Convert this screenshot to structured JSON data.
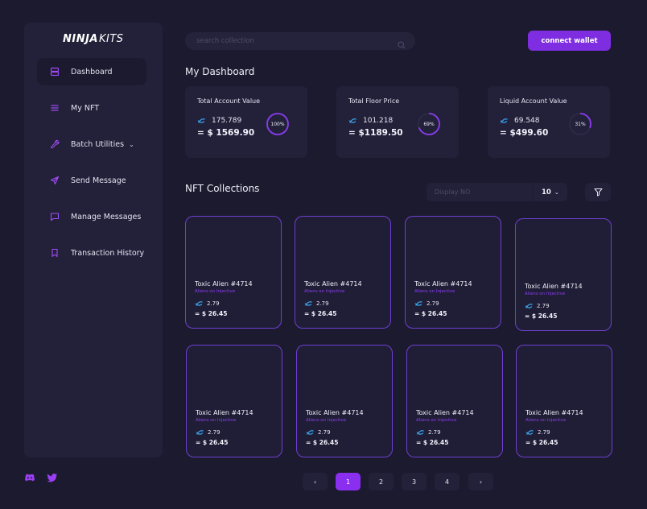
{
  "brand": {
    "name_part1": "NINJA",
    "name_part2": "KITS"
  },
  "sidebar": {
    "items": [
      {
        "label": "Dashboard",
        "icon": "database-icon",
        "active": true
      },
      {
        "label": "My NFT",
        "icon": "list-icon"
      },
      {
        "label": "Batch Utilities",
        "icon": "wrench-icon",
        "chevron": "⌄"
      },
      {
        "label": "Send Message",
        "icon": "send-icon"
      },
      {
        "label": "Manage Messages",
        "icon": "message-icon"
      },
      {
        "label": "Transaction History",
        "icon": "bookmark-icon"
      }
    ]
  },
  "social": [
    {
      "icon": "discord-icon"
    },
    {
      "icon": "twitter-icon"
    }
  ],
  "search": {
    "placeholder": "search collection"
  },
  "header": {
    "connect_label": "connect wallet"
  },
  "dashboard": {
    "title": "My Dashboard",
    "stats": [
      {
        "label": "Total Account Value",
        "tokens": "175.789",
        "usd": "= $ 1569.90",
        "percent_label": "100%",
        "percent": 100
      },
      {
        "label": "Total Floor Price",
        "tokens": "101.218",
        "usd": "= $1189.50",
        "percent_label": "69%",
        "percent": 69
      },
      {
        "label": "Liquid Account Value",
        "tokens": "69.548",
        "usd": "= $499.60",
        "percent_label": "31%",
        "percent": 31
      }
    ]
  },
  "collections": {
    "title": "NFT Collections",
    "display_placeholder": "Display NO",
    "display_count": "10",
    "display_chevron": "⌄",
    "items": [
      {
        "name": "Toxic Alien #4714",
        "sub": "Aliens on Injective",
        "price": "2.79",
        "usd": "= $ 26.45"
      },
      {
        "name": "Toxic Alien #4714",
        "sub": "Aliens on Injective",
        "price": "2.79",
        "usd": "= $ 26.45"
      },
      {
        "name": "Toxic Alien #4714",
        "sub": "Aliens on Injective",
        "price": "2.79",
        "usd": "= $ 26.45"
      },
      {
        "name": "Toxic Alien #4714",
        "sub": "Aliens on Injective",
        "price": "2.79",
        "usd": "= $ 26.45"
      },
      {
        "name": "Toxic Alien #4714",
        "sub": "Aliens on Injective",
        "price": "2.79",
        "usd": "= $ 26.45"
      },
      {
        "name": "Toxic Alien #4714",
        "sub": "Aliens on Injective",
        "price": "2.79",
        "usd": "= $ 26.45"
      },
      {
        "name": "Toxic Alien #4714",
        "sub": "Aliens on Injective",
        "price": "2.79",
        "usd": "= $ 26.45"
      },
      {
        "name": "Toxic Alien #4714",
        "sub": "Aliens on Injective",
        "price": "2.79",
        "usd": "= $ 26.45"
      }
    ]
  },
  "pagination": {
    "prev": "‹",
    "pages": [
      "1",
      "2",
      "3",
      "4"
    ],
    "active": "1",
    "next": "›"
  },
  "colors": {
    "accent": "#7e2ee0",
    "background": "#1c1a2e",
    "card": "#23213a"
  }
}
